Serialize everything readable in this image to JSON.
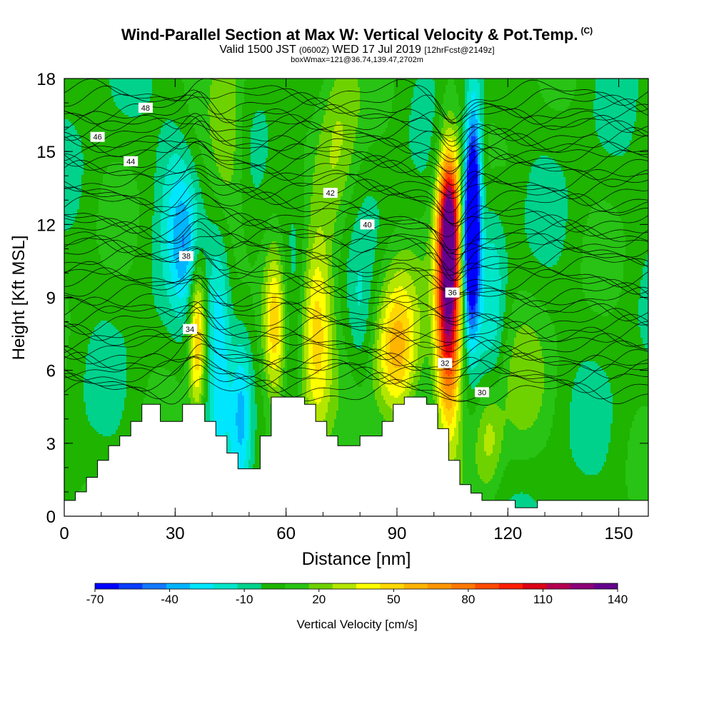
{
  "chart_data": {
    "type": "heatmap",
    "title": "Wind-Parallel Section at Max W: Vertical Velocity & Pot.Temp.",
    "title_mark": "(C)",
    "subtitle": {
      "valid": "Valid 1500 JST",
      "utc": "(0600Z)",
      "date": "WED 17 Jul 2019",
      "forecast": "[12hrFcst@2149z]"
    },
    "info_line": "boxWmax=121@36.74,139.47,2702m",
    "xlabel": "Distance [nm]",
    "ylabel": "Height [Kft MSL]",
    "xlim": [
      0,
      158
    ],
    "ylim": [
      0,
      18
    ],
    "x_ticks": [
      "0",
      "30",
      "60",
      "90",
      "120",
      "150"
    ],
    "y_ticks": [
      "0",
      "3",
      "6",
      "9",
      "12",
      "15",
      "18"
    ],
    "colorbar": {
      "label": "Vertical Velocity [cm/s]",
      "tick_labels": [
        "-70",
        "-40",
        "-10",
        "20",
        "50",
        "80",
        "110",
        "140"
      ],
      "levels": [
        -70,
        -60,
        -50,
        -40,
        -30,
        -20,
        -10,
        0,
        10,
        20,
        30,
        40,
        50,
        60,
        70,
        80,
        90,
        100,
        110,
        120,
        130,
        140
      ],
      "colors": [
        "#0000ff",
        "#0a3cff",
        "#1478ff",
        "#00b4ff",
        "#00e6ff",
        "#00e6c8",
        "#00d28c",
        "#1eb400",
        "#28c314",
        "#6ed200",
        "#b4e600",
        "#ffff00",
        "#ffd700",
        "#ffb400",
        "#ff9600",
        "#ff7800",
        "#ff4b00",
        "#ff1e00",
        "#dc0014",
        "#b40050",
        "#8c0078",
        "#64008c"
      ]
    },
    "terrain": [
      [
        0,
        0.65
      ],
      [
        3,
        0.65
      ],
      [
        3,
        1.0
      ],
      [
        6,
        1.0
      ],
      [
        6,
        1.6
      ],
      [
        9,
        1.6
      ],
      [
        9,
        2.3
      ],
      [
        12,
        2.3
      ],
      [
        12,
        2.9
      ],
      [
        15,
        2.9
      ],
      [
        15,
        3.3
      ],
      [
        18,
        3.3
      ],
      [
        18,
        3.9
      ],
      [
        21,
        3.9
      ],
      [
        21,
        4.6
      ],
      [
        24,
        4.6
      ],
      [
        24,
        4.6
      ],
      [
        26,
        4.6
      ],
      [
        26,
        3.9
      ],
      [
        32,
        3.9
      ],
      [
        32,
        4.6
      ],
      [
        38,
        4.6
      ],
      [
        38,
        3.9
      ],
      [
        41,
        3.9
      ],
      [
        41,
        3.3
      ],
      [
        44,
        3.3
      ],
      [
        44,
        2.6
      ],
      [
        47,
        2.6
      ],
      [
        47,
        1.95
      ],
      [
        53,
        1.95
      ],
      [
        53,
        3.3
      ],
      [
        56,
        3.3
      ],
      [
        56,
        4.9
      ],
      [
        65,
        4.9
      ],
      [
        65,
        4.6
      ],
      [
        68,
        4.6
      ],
      [
        68,
        3.9
      ],
      [
        71,
        3.9
      ],
      [
        71,
        3.3
      ],
      [
        74,
        3.3
      ],
      [
        74,
        2.9
      ],
      [
        80,
        2.9
      ],
      [
        80,
        3.3
      ],
      [
        86,
        3.3
      ],
      [
        86,
        3.9
      ],
      [
        89,
        3.9
      ],
      [
        89,
        4.6
      ],
      [
        92,
        4.6
      ],
      [
        92,
        4.9
      ],
      [
        98,
        4.9
      ],
      [
        98,
        4.6
      ],
      [
        101,
        4.6
      ],
      [
        101,
        3.6
      ],
      [
        104,
        3.6
      ],
      [
        104,
        2.3
      ],
      [
        107,
        2.3
      ],
      [
        107,
        1.3
      ],
      [
        110,
        1.3
      ],
      [
        110,
        0.95
      ],
      [
        113,
        0.95
      ],
      [
        113,
        0.65
      ],
      [
        122,
        0.65
      ],
      [
        122,
        0.35
      ],
      [
        128,
        0.35
      ],
      [
        128,
        0.65
      ],
      [
        158,
        0.65
      ]
    ],
    "w_cells": [
      {
        "x": 36,
        "y": 7.5,
        "sx": 1.6,
        "sy": 2.2,
        "w": 60
      },
      {
        "x": 57,
        "y": 7.8,
        "sx": 2.2,
        "sy": 2.2,
        "w": 60
      },
      {
        "x": 68,
        "y": 7.5,
        "sx": 3.2,
        "sy": 3.0,
        "w": 55
      },
      {
        "x": 90,
        "y": 6.8,
        "sx": 4.0,
        "sy": 2.2,
        "w": 60
      },
      {
        "x": 104,
        "y": 9.5,
        "sx": 2.4,
        "sy": 3.6,
        "w": 150
      },
      {
        "x": 104,
        "y": 12.5,
        "sx": 1.6,
        "sy": 1.4,
        "w": 50
      },
      {
        "x": 110,
        "y": 11.5,
        "sx": 1.5,
        "sy": 2.5,
        "w": -110
      },
      {
        "x": 111,
        "y": 14.0,
        "sx": 1.5,
        "sy": 2.8,
        "w": -45
      },
      {
        "x": 42,
        "y": 7.6,
        "sx": 2.5,
        "sy": 3.2,
        "w": -40
      },
      {
        "x": 33,
        "y": 11.0,
        "sx": 3.0,
        "sy": 2.0,
        "w": -30
      },
      {
        "x": 48,
        "y": 4.5,
        "sx": 2.0,
        "sy": 2.5,
        "w": -35
      },
      {
        "x": 63,
        "y": 11.5,
        "sx": 3.5,
        "sy": 2.5,
        "w": -18
      },
      {
        "x": 30,
        "y": 14.0,
        "sx": 3.5,
        "sy": 2.5,
        "w": -18
      },
      {
        "x": 44,
        "y": 15.5,
        "sx": 3.5,
        "sy": 3.0,
        "w": 30
      },
      {
        "x": 74,
        "y": 15.5,
        "sx": 4.0,
        "sy": 3.0,
        "w": 25
      },
      {
        "x": 123,
        "y": 5.5,
        "sx": 5.0,
        "sy": 2.5,
        "w": 15
      },
      {
        "x": 115,
        "y": 3.3,
        "sx": 2.5,
        "sy": 1.5,
        "w": 25
      },
      {
        "x": 116,
        "y": 9.5,
        "sx": 2.5,
        "sy": 3.0,
        "w": -20
      },
      {
        "x": 80,
        "y": 8.0,
        "sx": 2.5,
        "sy": 2.0,
        "w": -15
      }
    ],
    "isentropes": [
      {
        "label": "30",
        "base": 5.1,
        "lx": 113,
        "ly": 5.1
      },
      {
        "label": "32",
        "base": 6.2,
        "lx": 103,
        "ly": 6.3
      },
      {
        "label": "34",
        "base": 7.5,
        "lx": 34,
        "ly": 7.7
      },
      {
        "label": "36",
        "base": 8.9,
        "lx": 105,
        "ly": 9.2
      },
      {
        "label": "38",
        "base": 10.3,
        "lx": 33,
        "ly": 10.7
      },
      {
        "label": "40",
        "base": 11.4,
        "lx": 82,
        "ly": 12.0
      },
      {
        "label": "42",
        "base": 12.8,
        "lx": 72,
        "ly": 13.3
      },
      {
        "label": "44",
        "base": 14.1,
        "lx": 18,
        "ly": 14.6
      },
      {
        "label": "46",
        "base": 15.2,
        "lx": 9,
        "ly": 15.6
      },
      {
        "label": "48",
        "base": 16.4,
        "lx": 22,
        "ly": 16.8
      }
    ]
  }
}
